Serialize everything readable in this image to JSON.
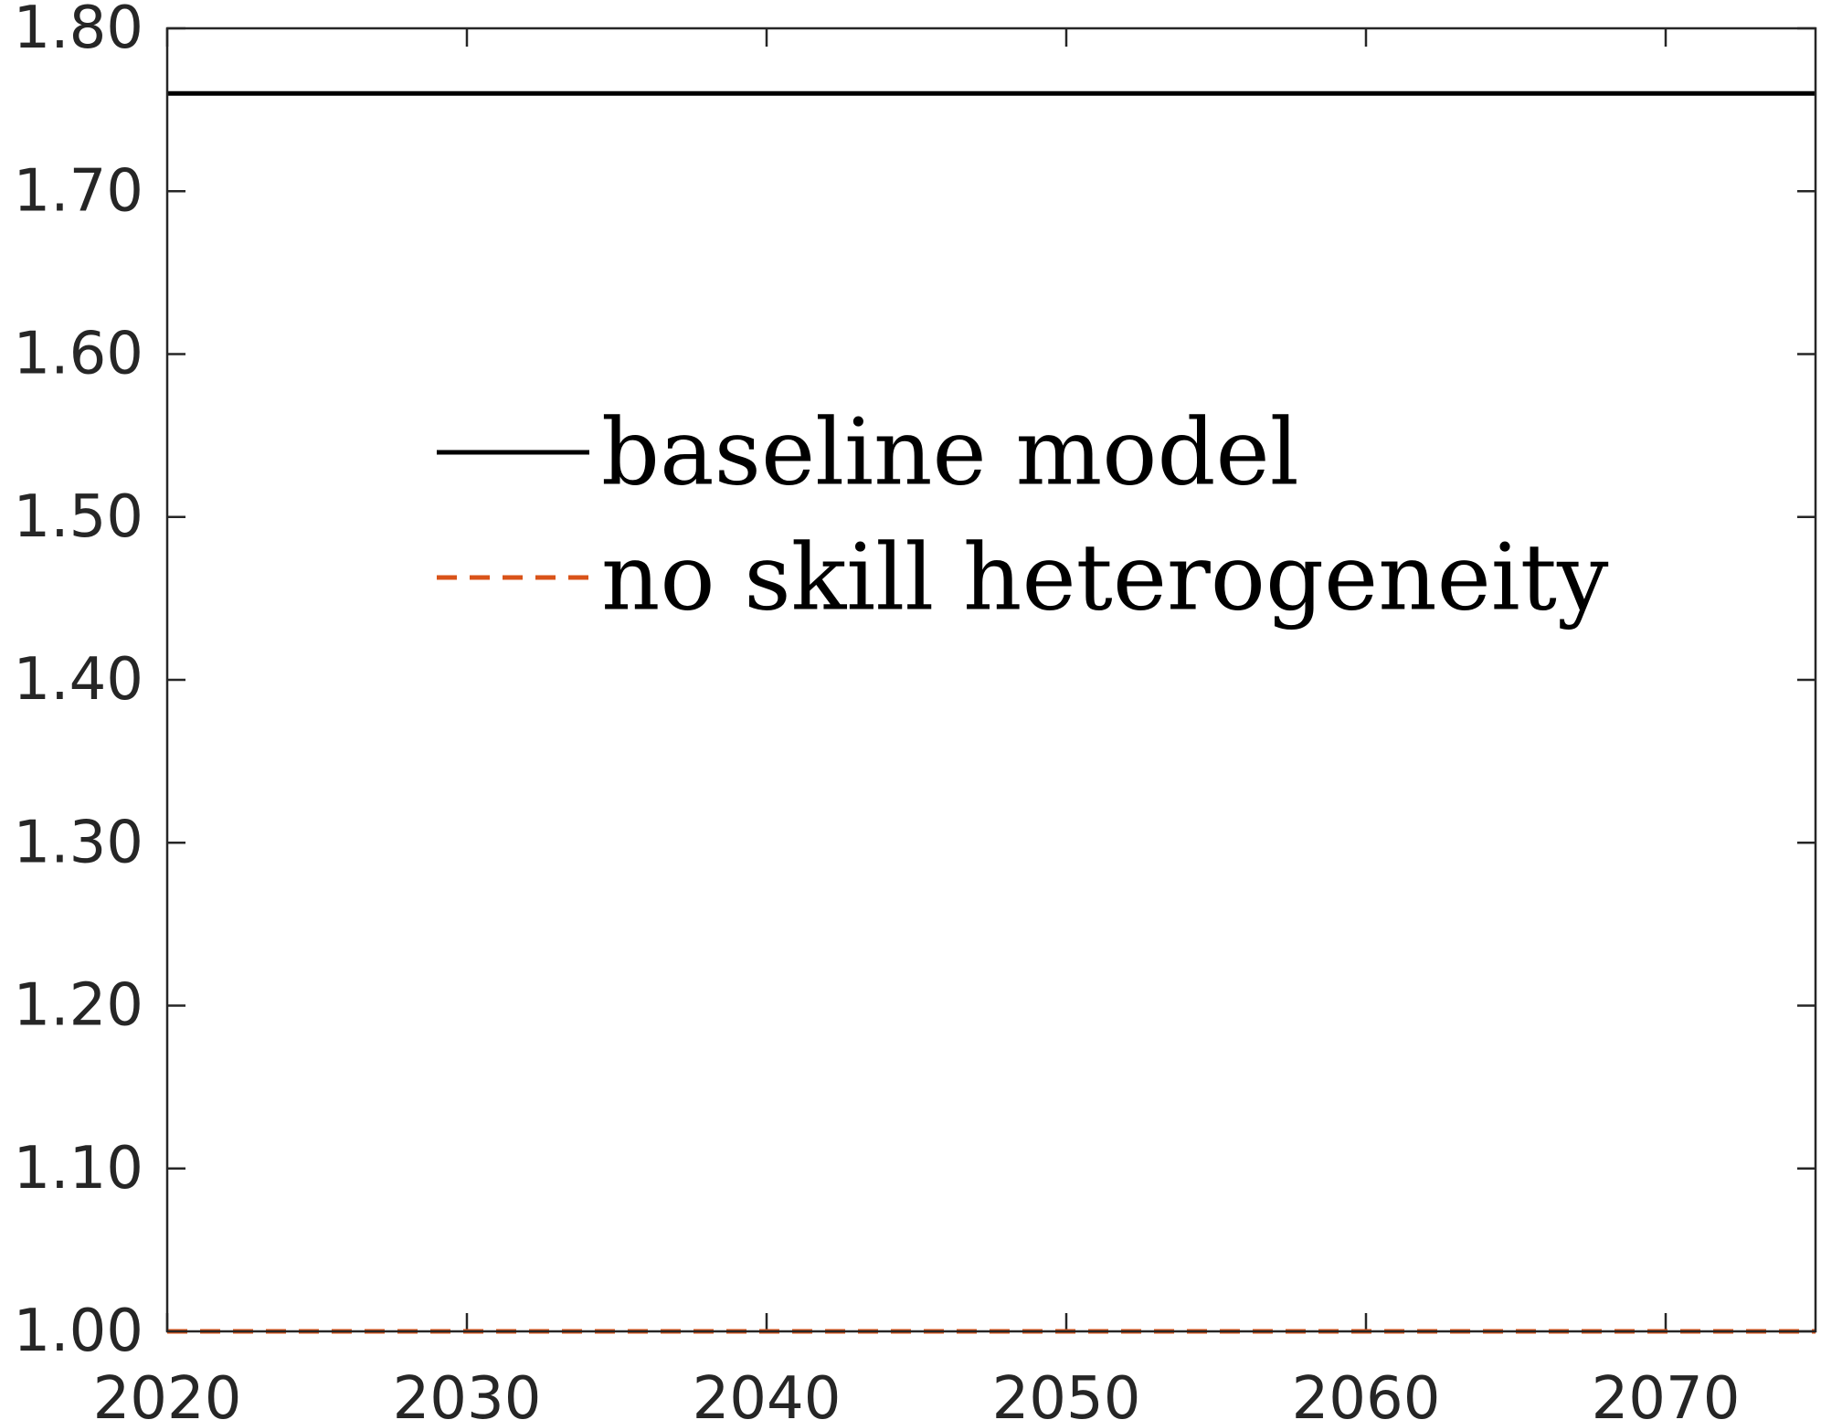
{
  "chart_data": {
    "type": "line",
    "title": "",
    "xlabel": "",
    "ylabel": "",
    "xlim": [
      2020,
      2075
    ],
    "ylim": [
      1.0,
      1.8
    ],
    "xticks": [
      2020,
      2030,
      2040,
      2050,
      2060,
      2070
    ],
    "yticks": [
      1.0,
      1.1,
      1.2,
      1.3,
      1.4,
      1.5,
      1.6,
      1.7,
      1.8
    ],
    "xtick_labels": [
      "2020",
      "2030",
      "2040",
      "2050",
      "2060",
      "2070"
    ],
    "ytick_labels": [
      "1.00",
      "1.10",
      "1.20",
      "1.30",
      "1.40",
      "1.50",
      "1.60",
      "1.70",
      "1.80"
    ],
    "grid": false,
    "legend_position": "upper-left, inside plot",
    "series": [
      {
        "name": "baseline model",
        "color": "#000000",
        "line_style": "solid",
        "x": [
          2020,
          2075
        ],
        "values": [
          1.76,
          1.76
        ]
      },
      {
        "name": "no skill heterogeneity",
        "color": "#D95319",
        "line_style": "dashed",
        "x": [
          2020,
          2075
        ],
        "values": [
          1.0,
          1.0
        ]
      }
    ]
  }
}
